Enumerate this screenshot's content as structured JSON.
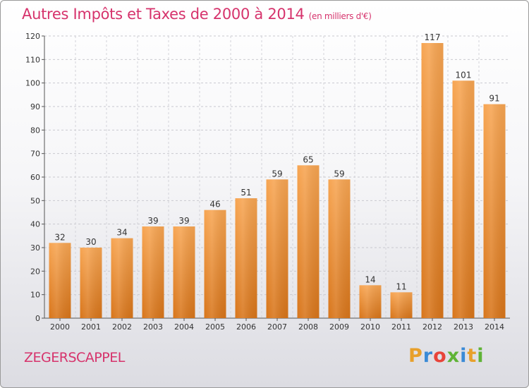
{
  "title": "Autres Impôts et Taxes de 2000 à 2014",
  "subtitle": "(en milliers d'€)",
  "location": "ZEGERSCAPPEL",
  "logo": {
    "letters": [
      "P",
      "r",
      "o",
      "x",
      "i",
      "t",
      "i"
    ],
    "colors": [
      "#e8a02b",
      "#3a8ad6",
      "#e8443a",
      "#5fb336",
      "#3a8ad6",
      "#e8a02b",
      "#5fb336"
    ]
  },
  "colors": {
    "bar_top": "#f7a552",
    "bar_bottom": "#d8751a",
    "text_accent": "#d6336c"
  },
  "chart_data": {
    "type": "bar",
    "categories": [
      "2000",
      "2001",
      "2002",
      "2003",
      "2004",
      "2005",
      "2006",
      "2007",
      "2008",
      "2009",
      "2010",
      "2011",
      "2012",
      "2013",
      "2014"
    ],
    "values": [
      32,
      30,
      34,
      39,
      39,
      46,
      51,
      59,
      65,
      59,
      14,
      11,
      117,
      101,
      91
    ],
    "title": "Autres Impôts et Taxes de 2000 à 2014",
    "subtitle": "(en milliers d'€)",
    "xlabel": "",
    "ylabel": "",
    "ylim": [
      0,
      120
    ],
    "yticks": [
      0,
      10,
      20,
      30,
      40,
      50,
      60,
      70,
      80,
      90,
      100,
      110,
      120
    ],
    "grid": true
  }
}
